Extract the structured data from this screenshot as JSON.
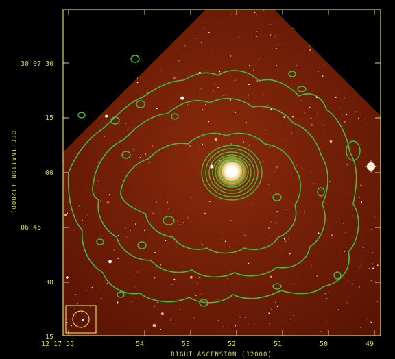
{
  "figure": {
    "x_axis_label": "RIGHT ASCENSION (J2000)",
    "y_axis_label": "DECLINATION (J2000)",
    "ra_ticks": [
      "12 17 55",
      "54",
      "53",
      "52",
      "51",
      "50",
      "49"
    ],
    "dec_ticks": [
      "30 07 30",
      "15",
      "00",
      "06 45",
      "30",
      "15"
    ],
    "frame_color": "#d8d84a",
    "contour_color": "#3fbf3f",
    "image_color": "#6e1a06"
  }
}
